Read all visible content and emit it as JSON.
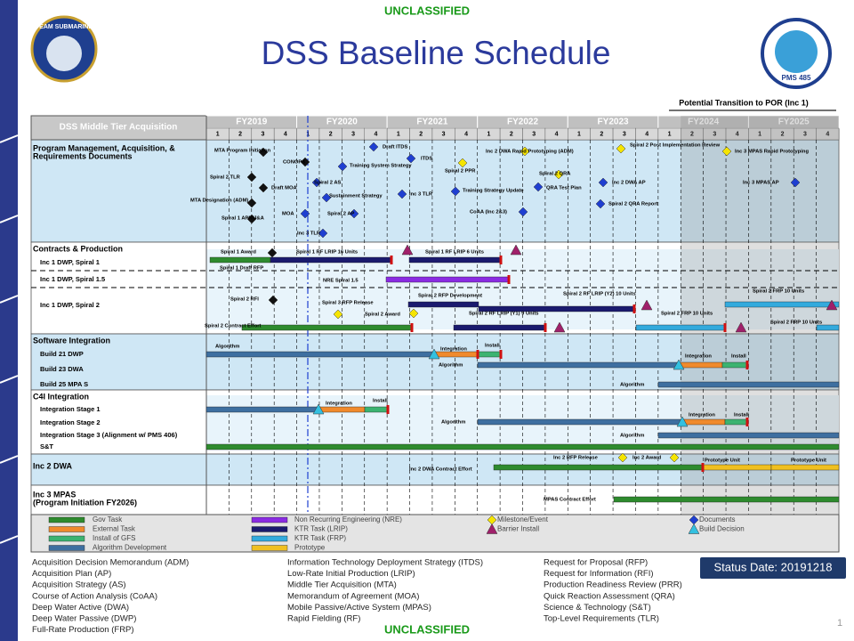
{
  "classification_top": "UNCLASSIFIED",
  "title": "DSS Baseline Schedule",
  "logo_left": "TEAM SUBMARINE",
  "logo_right": "PMS 485",
  "transition_note": "Potential Transition to POR (Inc 1)",
  "header": {
    "corner": "DSS Middle Tier Acquisition",
    "fiscal_years": [
      "FY2019",
      "FY2020",
      "FY2021",
      "FY2022",
      "FY2023",
      "FY2024",
      "FY2025"
    ],
    "quarters": [
      "1",
      "2",
      "3",
      "4"
    ]
  },
  "row_labels": [
    "Program Management, Acquisition, &",
    "Requirements Documents",
    "Contracts & Production",
    "Inc 1 DWP, Spiral 1",
    "Inc 1 DWP, Spiral 1.5",
    "Inc 1 DWP, Spiral 2",
    "Software Integration",
    "Build 21 DWP",
    "Build 23 DWA",
    "Build 25 MPA S",
    "C4I Integration",
    "Integration Stage 1",
    "Integration Stage 2",
    "Integration Stage 3 (Alignment w/ PMS 406)",
    "S&T",
    "Inc 2 DWA",
    "Inc 3 MPAS",
    "(Program Initiation FY2026)"
  ],
  "annotations": [
    "MTA Program Initiation",
    "CONOPS",
    "Draft ITDS",
    "ITDS",
    "Inc 2 DWA Rapid Prototyping (ADM)",
    "Spiral 2 Post Implementation Review",
    "Inc 3 MPAS Rapid Prototyping",
    "Training System Strategy",
    "Spiral 2 PPR",
    "Spiral 2 TLR",
    "Spiral 2 AS",
    "Spiral 2 QRA",
    "Inc 2 DWA AP",
    "Inc 3 MPAS AP",
    "Draft MOA",
    "Sustainment Strategy",
    "Inc 3 TLR",
    "Training Strategy Update",
    "QRA Test Plan",
    "MTA Designation (ADM)",
    "Spiral 2 QRA Report",
    "MOA",
    "Spiral 2 AP",
    "CoAA (Inc 2&3)",
    "Spiral 1 APN/J&A",
    "Inc 3 TLR",
    "Spiral 1 Award",
    "Spiral 1 RF LRIP 16 Units",
    "Spiral 1 RF LRIP 6 Units",
    "Spiral 1 Draft RFP",
    "NRE Spiral 1.5",
    "Spiral 2 RFI",
    "Spiral 2 RFP Development",
    "Spiral 2 RF LRIP (Y2) 10 Units",
    "Spiral 2 FRP 10 Units",
    "Spiral 3 RFP Release",
    "Spiral 2 Award",
    "Spiral 2 RF LRIP (Y1) 9 Units",
    "Spiral 2 FRP 10 Units",
    "Spiral 2 FRP 10 Units",
    "Spiral 2 Contract Effort",
    "Algorithm",
    "Integration",
    "Install",
    "Algorithm",
    "Integration",
    "Install",
    "Algorithm",
    "Integration",
    "Install",
    "Algorithm",
    "Integration",
    "Install",
    "Algorithm",
    "Inc 2 RFP Release",
    "Inc 2 Award",
    "Prototype Unit",
    "Prototype Unit",
    "Inc 2 DWA Contract Effort",
    "MPAS Contract Effort"
  ],
  "legend": [
    "Gov Task",
    "External Task",
    "Install of GFS",
    "Algorithm Development",
    "Non Recurring Engineering (NRE)",
    "KTR Task (LRIP)",
    "KTR Task (FRP)",
    "Prototype",
    "Milestone/Event",
    "Barrier Install",
    "Documents",
    "Build Decision"
  ],
  "acronyms": [
    [
      "Acquisition Decision Memorandum (ADM)",
      "Acquisition Plan (AP)",
      "Acquisition Strategy (AS)",
      "Course of Action Analysis (CoAA)",
      "Deep Water Active (DWA)",
      "Deep Water Passive (DWP)",
      "Full-Rate Production (FRP)"
    ],
    [
      "Information Technology Deployment Strategy (ITDS)",
      "Low-Rate Initial Production (LRIP)",
      "Middle Tier Acquisition (MTA)",
      "Memorandum of Agreement (MOA)",
      "Mobile Passive/Active System (MPAS)",
      "Rapid Fielding (RF)"
    ],
    [
      "Request for Proposal (RFP)",
      "Request for Information (RFI)",
      "Production Readiness Review (PRR)",
      "Quick Reaction Assessment (QRA)",
      "Science & Technology (S&T)",
      "Top-Level Requirements (TLR)"
    ]
  ],
  "status": "Status Date: 20191218",
  "page_number": "1",
  "classification_bottom": "UNCLASSIFIED"
}
